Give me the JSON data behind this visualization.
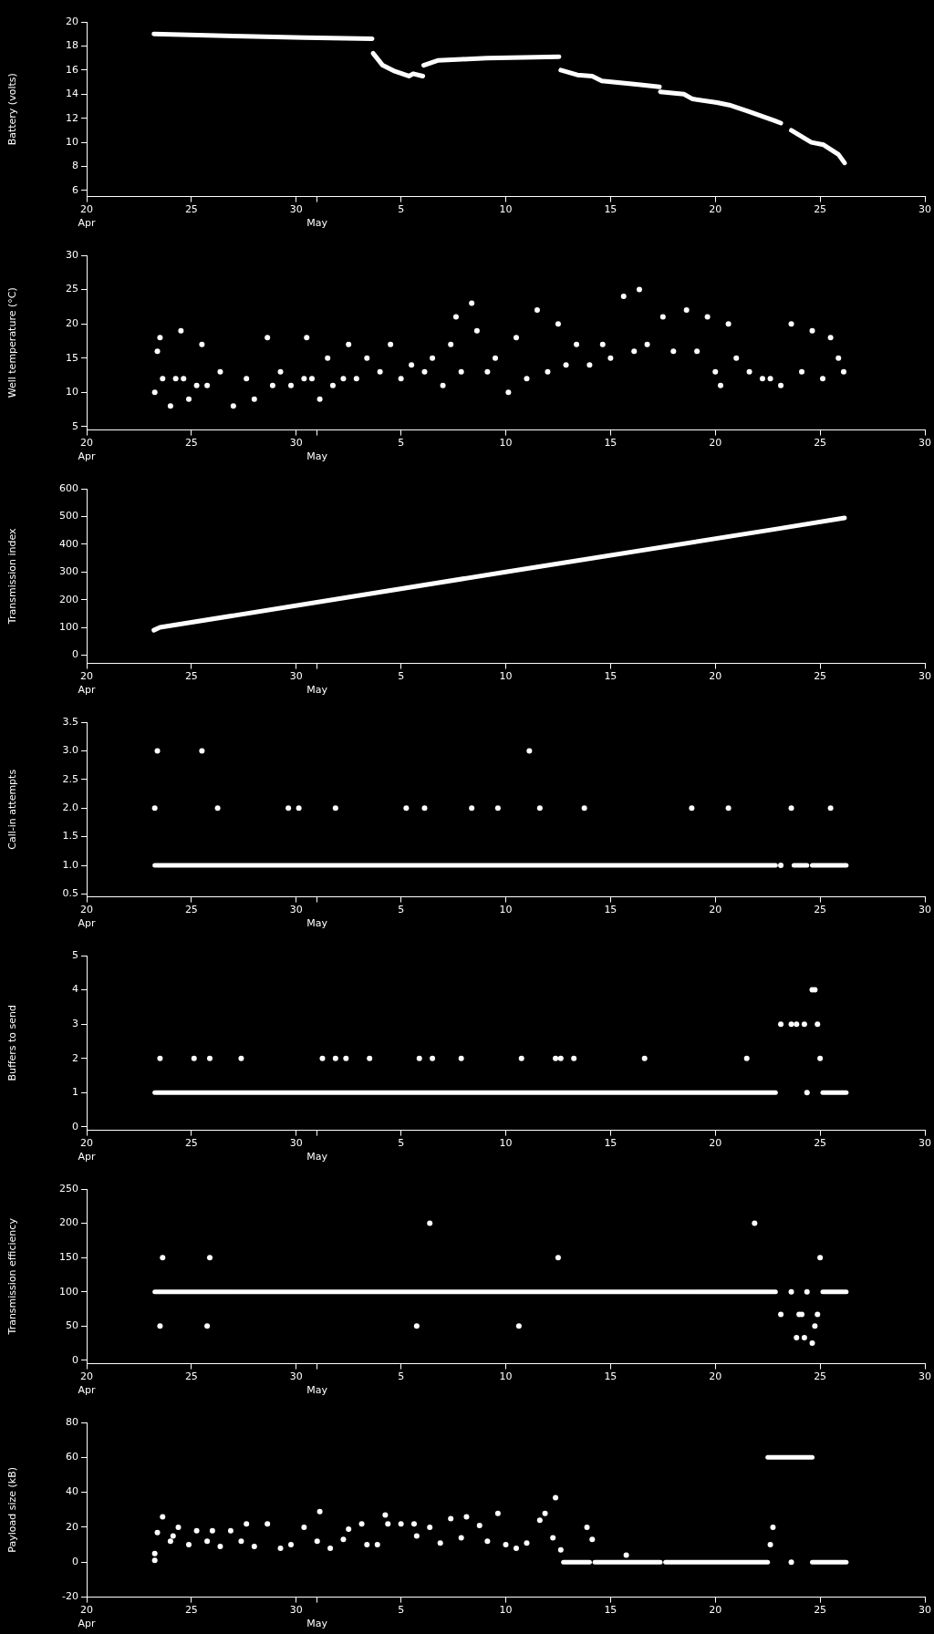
{
  "chart_data": [
    {
      "type": "line",
      "ylabel": "Battery (volts)",
      "xlim": [
        "--04-20",
        "--05-30"
      ],
      "xticks": [
        {
          "value": "--04-20",
          "label": "20"
        },
        {
          "value": "--04-25",
          "label": "25"
        },
        {
          "value": "--04-30",
          "label": "30"
        },
        {
          "value": "--05-01",
          "label": null
        },
        {
          "value": "--05-05",
          "label": "5"
        },
        {
          "value": "--05-10",
          "label": "10"
        },
        {
          "value": "--05-15",
          "label": "15"
        },
        {
          "value": "--05-20",
          "label": "20"
        },
        {
          "value": "--05-25",
          "label": "25"
        },
        {
          "value": "--05-30",
          "label": "30"
        }
      ],
      "x2lim": [
        "--04-20",
        "--05-30"
      ],
      "x2ticks": [
        {
          "value": "--04-20",
          "label": "Apr"
        },
        {
          "value": "--05-01",
          "label": "May"
        }
      ],
      "ylim": [
        5.5,
        20
      ],
      "yticks": [
        6,
        8,
        10,
        12,
        14,
        16,
        18,
        20
      ],
      "grid": false,
      "series": [
        {
          "color": "#ffffff",
          "x": [
            "--04-23T05:00",
            "--04-27T12:00",
            "--04-30T09:00",
            "--05-03T15:00"
          ],
          "values": [
            19.0,
            18.8,
            18.7,
            18.6
          ]
        },
        {
          "color": "#ffffff",
          "x": [
            "--05-03T16:00",
            "--05-04T03:00",
            "--05-04T17:00",
            "--05-05T09:00",
            "--05-05T14:00",
            "--05-06T01:00"
          ],
          "values": [
            17.4,
            16.4,
            15.9,
            15.5,
            15.7,
            15.5
          ]
        },
        {
          "color": "#ffffff",
          "x": [
            "--05-06T02:00",
            "--05-06T18:00",
            "--05-07T22:00",
            "--05-09T02:00",
            "--05-12T13:00"
          ],
          "values": [
            16.4,
            16.8,
            16.9,
            17.0,
            17.1
          ]
        },
        {
          "color": "#ffffff",
          "x": [
            "--05-12T15:00",
            "--05-13T10:00",
            "--05-14T03:00",
            "--05-14T14:00",
            "--05-16T08:00",
            "--05-17T08:00"
          ],
          "values": [
            16.0,
            15.6,
            15.5,
            15.1,
            14.8,
            14.6
          ]
        },
        {
          "color": "#ffffff",
          "x": [
            "--05-17T09:00",
            "--05-18T12:00",
            "--05-18T22:00",
            "--05-20T02:00",
            "--05-20T16:00",
            "--05-21T13:00",
            "--05-22T20:00",
            "--05-23T03:00"
          ],
          "values": [
            14.2,
            14.0,
            13.6,
            13.3,
            13.1,
            12.6,
            11.8,
            11.6
          ]
        },
        {
          "color": "#ffffff",
          "x": [
            "--05-23T15:00",
            "--05-24T07:00",
            "--05-24T14:00",
            "--05-25T04:00",
            "--05-25T21:00",
            "--05-26T04:00"
          ],
          "values": [
            11.0,
            10.3,
            10.0,
            9.8,
            9.0,
            8.3
          ]
        }
      ]
    },
    {
      "type": "scatter",
      "marker": "circle",
      "ylabel": "Well temperature (°C)",
      "xlim": [
        "--04-20",
        "--05-30"
      ],
      "xticks": [
        {
          "value": "--04-20",
          "label": "20"
        },
        {
          "value": "--04-25",
          "label": "25"
        },
        {
          "value": "--04-30",
          "label": "30"
        },
        {
          "value": "--05-01",
          "label": null
        },
        {
          "value": "--05-05",
          "label": "5"
        },
        {
          "value": "--05-10",
          "label": "10"
        },
        {
          "value": "--05-15",
          "label": "15"
        },
        {
          "value": "--05-20",
          "label": "20"
        },
        {
          "value": "--05-25",
          "label": "25"
        },
        {
          "value": "--05-30",
          "label": "30"
        }
      ],
      "x2lim": [
        "--04-20",
        "--05-30"
      ],
      "x2ticks": [
        {
          "value": "--04-20",
          "label": "Apr"
        },
        {
          "value": "--05-01",
          "label": "May"
        }
      ],
      "ylim": [
        4.5,
        30
      ],
      "yticks": [
        5,
        10,
        15,
        20,
        25,
        30
      ],
      "grid": false,
      "series": [
        {
          "color": "#ffffff",
          "x": [
            "--04-23T06:00",
            "--04-23T09:00",
            "--04-23T12:00",
            "--04-23T15:00",
            "--04-24T00:00",
            "--04-24T06:00",
            "--04-24T12:00",
            "--04-24T15:00",
            "--04-24T21:00",
            "--04-25T06:00",
            "--04-25T12:00",
            "--04-25T18:00",
            "--04-26T09:00",
            "--04-27T00:00",
            "--04-27T15:00",
            "--04-28T00:00",
            "--04-28T15:00",
            "--04-28T21:00",
            "--04-29T06:00",
            "--04-29T18:00",
            "--04-30T09:00",
            "--04-30T12:00",
            "--04-30T18:00",
            "--05-01T03:00",
            "--05-01T12:00",
            "--05-01T18:00",
            "--05-02T06:00",
            "--05-02T12:00",
            "--05-02T21:00",
            "--05-03T09:00",
            "--05-04T00:00",
            "--05-04T12:00",
            "--05-05T00:00",
            "--05-05T12:00",
            "--05-06T03:00",
            "--05-06T12:00",
            "--05-07T00:00",
            "--05-07T09:00",
            "--05-07T15:00",
            "--05-07T21:00",
            "--05-08T09:00",
            "--05-08T15:00",
            "--05-09T03:00",
            "--05-09T12:00",
            "--05-10T03:00",
            "--05-10T12:00",
            "--05-11T00:00",
            "--05-11T12:00",
            "--05-12T00:00",
            "--05-12T12:00",
            "--05-12T21:00",
            "--05-13T09:00",
            "--05-14T00:00",
            "--05-14T15:00",
            "--05-15T00:00",
            "--05-15T15:00",
            "--05-16T03:00",
            "--05-16T09:00",
            "--05-16T18:00",
            "--05-17T12:00",
            "--05-18T00:00",
            "--05-18T15:00",
            "--05-19T03:00",
            "--05-19T15:00",
            "--05-20T00:00",
            "--05-20T06:00",
            "--05-20T15:00",
            "--05-21T00:00",
            "--05-21T15:00",
            "--05-22T06:00",
            "--05-22T15:00",
            "--05-23T03:00",
            "--05-23T15:00",
            "--05-24T03:00",
            "--05-24T15:00",
            "--05-25T03:00",
            "--05-25T12:00",
            "--05-25T21:00",
            "--05-26T03:00"
          ],
          "values": [
            10,
            16,
            18,
            12,
            8,
            12,
            19,
            12,
            9,
            11,
            17,
            11,
            13,
            8,
            12,
            9,
            18,
            11,
            13,
            11,
            12,
            18,
            12,
            9,
            15,
            11,
            12,
            17,
            12,
            15,
            13,
            17,
            12,
            14,
            13,
            15,
            11,
            17,
            21,
            13,
            23,
            19,
            13,
            15,
            10,
            18,
            12,
            22,
            13,
            20,
            14,
            17,
            14,
            17,
            15,
            24,
            16,
            25,
            17,
            21,
            16,
            22,
            16,
            21,
            13,
            11,
            20,
            15,
            13,
            12,
            12,
            11,
            20,
            13,
            19,
            12,
            18,
            15,
            13
          ]
        }
      ]
    },
    {
      "type": "line",
      "ylabel": "Transmission index",
      "xlim": [
        "--04-20",
        "--05-30"
      ],
      "xticks": [
        {
          "value": "--04-20",
          "label": "20"
        },
        {
          "value": "--04-25",
          "label": "25"
        },
        {
          "value": "--04-30",
          "label": "30"
        },
        {
          "value": "--05-01",
          "label": null
        },
        {
          "value": "--05-05",
          "label": "5"
        },
        {
          "value": "--05-10",
          "label": "10"
        },
        {
          "value": "--05-15",
          "label": "15"
        },
        {
          "value": "--05-20",
          "label": "20"
        },
        {
          "value": "--05-25",
          "label": "25"
        },
        {
          "value": "--05-30",
          "label": "30"
        }
      ],
      "x2lim": [
        "--04-20",
        "--05-30"
      ],
      "x2ticks": [
        {
          "value": "--04-20",
          "label": "Apr"
        },
        {
          "value": "--05-01",
          "label": "May"
        }
      ],
      "ylim": [
        -30,
        600
      ],
      "yticks": [
        0,
        100,
        200,
        300,
        400,
        500,
        600
      ],
      "grid": false,
      "series": [
        {
          "color": "#ffffff",
          "x": [
            "--04-23T05:00",
            "--04-23T12:00",
            "--05-10T00:00",
            "--05-22T22:00",
            "--05-26T04:00"
          ],
          "values": [
            90,
            100,
            300,
            455,
            495
          ]
        }
      ]
    },
    {
      "type": "scatter",
      "marker": "circle",
      "ylabel": "Call-in attempts",
      "xlim": [
        "--04-20",
        "--05-30"
      ],
      "xticks": [
        {
          "value": "--04-20",
          "label": "20"
        },
        {
          "value": "--04-25",
          "label": "25"
        },
        {
          "value": "--04-30",
          "label": "30"
        },
        {
          "value": "--05-01",
          "label": null
        },
        {
          "value": "--05-05",
          "label": "5"
        },
        {
          "value": "--05-10",
          "label": "10"
        },
        {
          "value": "--05-15",
          "label": "15"
        },
        {
          "value": "--05-20",
          "label": "20"
        },
        {
          "value": "--05-25",
          "label": "25"
        },
        {
          "value": "--05-30",
          "label": "30"
        }
      ],
      "x2lim": [
        "--04-20",
        "--05-30"
      ],
      "x2ticks": [
        {
          "value": "--04-20",
          "label": "Apr"
        },
        {
          "value": "--05-01",
          "label": "May"
        }
      ],
      "ylim": [
        0.45,
        3.5
      ],
      "yticks": [
        0.5,
        {
          "value": 1,
          "label": "1.0"
        },
        1.5,
        {
          "value": 2,
          "label": "2.0"
        },
        2.5,
        {
          "value": 3,
          "label": "3.0"
        },
        3.5
      ],
      "grid": false,
      "series": [
        {
          "color": "#ffffff",
          "x": [
            "--04-23T09:00",
            "--04-25T12:00",
            "--05-11T03:00",
            "--04-23T06:00",
            "--04-26T06:00",
            "--04-29T15:00",
            "--04-30T03:00",
            "--05-01T21:00",
            "--05-05T06:00",
            "--05-06T03:00",
            "--05-08T09:00",
            "--05-09T15:00",
            "--05-11T15:00",
            "--05-13T18:00",
            "--05-18T21:00",
            "--05-20T15:00",
            "--05-23T15:00",
            "--05-25T12:00",
            "--05-23T03:00"
          ],
          "values": [
            3,
            3,
            3,
            2,
            2,
            2,
            2,
            2,
            2,
            2,
            2,
            2,
            2,
            2,
            2,
            2,
            2,
            2,
            1
          ]
        },
        {
          "type": "line",
          "marker": "none",
          "color": "#ffffff",
          "x": [
            "--04-23T06:00",
            "--05-22T21:00"
          ],
          "values": [
            1,
            1
          ]
        },
        {
          "type": "line",
          "marker": "none",
          "color": "#ffffff",
          "x": [
            "--05-23T18:00",
            "--05-24T09:00"
          ],
          "values": [
            1,
            1
          ]
        },
        {
          "type": "line",
          "marker": "none",
          "color": "#ffffff",
          "x": [
            "--05-24T15:00",
            "--05-26T06:00"
          ],
          "values": [
            1,
            1
          ]
        }
      ]
    },
    {
      "type": "scatter",
      "marker": "circle",
      "ylabel": "Buffers to send",
      "xlim": [
        "--04-20",
        "--05-30"
      ],
      "xticks": [
        {
          "value": "--04-20",
          "label": "20"
        },
        {
          "value": "--04-25",
          "label": "25"
        },
        {
          "value": "--04-30",
          "label": "30"
        },
        {
          "value": "--05-01",
          "label": null
        },
        {
          "value": "--05-05",
          "label": "5"
        },
        {
          "value": "--05-10",
          "label": "10"
        },
        {
          "value": "--05-15",
          "label": "15"
        },
        {
          "value": "--05-20",
          "label": "20"
        },
        {
          "value": "--05-25",
          "label": "25"
        },
        {
          "value": "--05-30",
          "label": "30"
        }
      ],
      "x2lim": [
        "--04-20",
        "--05-30"
      ],
      "x2ticks": [
        {
          "value": "--04-20",
          "label": "Apr"
        },
        {
          "value": "--05-01",
          "label": "May"
        }
      ],
      "ylim": [
        -0.1,
        5
      ],
      "yticks": [
        0,
        1,
        2,
        3,
        4,
        5
      ],
      "grid": false,
      "series": [
        {
          "color": "#ffffff",
          "x": [
            "--04-23T12:00",
            "--04-25T03:00",
            "--04-25T21:00",
            "--04-27T09:00",
            "--05-01T06:00",
            "--05-01T21:00",
            "--05-02T09:00",
            "--05-03T12:00",
            "--05-05T21:00",
            "--05-06T12:00",
            "--05-07T21:00",
            "--05-10T18:00",
            "--05-12T09:00",
            "--05-12T15:00",
            "--05-13T06:00",
            "--05-16T15:00",
            "--05-21T12:00",
            "--05-25T00:00",
            "--05-23T03:00",
            "--05-23T15:00",
            "--05-23T21:00",
            "--05-24T06:00",
            "--05-24T21:00",
            "--05-24T15:00",
            "--05-24T18:00",
            "--05-24T09:00"
          ],
          "values": [
            2,
            2,
            2,
            2,
            2,
            2,
            2,
            2,
            2,
            2,
            2,
            2,
            2,
            2,
            2,
            2,
            2,
            2,
            3,
            3,
            3,
            3,
            3,
            4,
            4,
            1
          ]
        },
        {
          "type": "line",
          "marker": "none",
          "color": "#ffffff",
          "x": [
            "--04-23T06:00",
            "--05-22T21:00"
          ],
          "values": [
            1,
            1
          ]
        },
        {
          "type": "line",
          "marker": "none",
          "color": "#ffffff",
          "x": [
            "--05-25T03:00",
            "--05-26T06:00"
          ],
          "values": [
            1,
            1
          ]
        }
      ]
    },
    {
      "type": "scatter",
      "marker": "circle",
      "ylabel": "Transmission efficiency",
      "xlim": [
        "--04-20",
        "--05-30"
      ],
      "xticks": [
        {
          "value": "--04-20",
          "label": "20"
        },
        {
          "value": "--04-25",
          "label": "25"
        },
        {
          "value": "--04-30",
          "label": "30"
        },
        {
          "value": "--05-01",
          "label": null
        },
        {
          "value": "--05-05",
          "label": "5"
        },
        {
          "value": "--05-10",
          "label": "10"
        },
        {
          "value": "--05-15",
          "label": "15"
        },
        {
          "value": "--05-20",
          "label": "20"
        },
        {
          "value": "--05-25",
          "label": "25"
        },
        {
          "value": "--05-30",
          "label": "30"
        }
      ],
      "x2lim": [
        "--04-20",
        "--05-30"
      ],
      "x2ticks": [
        {
          "value": "--04-20",
          "label": "Apr"
        },
        {
          "value": "--05-01",
          "label": "May"
        }
      ],
      "ylim": [
        -5,
        250
      ],
      "yticks": [
        0,
        50,
        100,
        150,
        200,
        250
      ],
      "grid": false,
      "series": [
        {
          "color": "#ffffff",
          "x": [
            "--04-23T15:00",
            "--04-25T21:00",
            "--05-12T12:00",
            "--05-25T00:00",
            "--04-23T12:00",
            "--04-25T18:00",
            "--05-05T18:00",
            "--05-10T15:00",
            "--05-06T09:00",
            "--05-21T21:00",
            "--05-23T03:00",
            "--05-23T15:00",
            "--05-23T21:00",
            "--05-24T00:00",
            "--05-24T03:00",
            "--05-24T06:00",
            "--05-24T09:00",
            "--05-24T15:00",
            "--05-24T18:00",
            "--05-24T21:00"
          ],
          "values": [
            150,
            150,
            150,
            150,
            50,
            50,
            50,
            50,
            200,
            200,
            67,
            100,
            33,
            67,
            67,
            33,
            100,
            25,
            50,
            67
          ]
        },
        {
          "type": "line",
          "marker": "none",
          "color": "#ffffff",
          "x": [
            "--04-23T06:00",
            "--05-22T21:00"
          ],
          "values": [
            100,
            100
          ]
        },
        {
          "type": "line",
          "marker": "none",
          "color": "#ffffff",
          "x": [
            "--05-25T03:00",
            "--05-26T06:00"
          ],
          "values": [
            100,
            100
          ]
        }
      ]
    },
    {
      "type": "scatter",
      "marker": "circle",
      "ylabel": "Payload size (kB)",
      "xlim": [
        "--04-20",
        "--05-30"
      ],
      "xticks": [
        {
          "value": "--04-20",
          "label": "20"
        },
        {
          "value": "--04-25",
          "label": "25"
        },
        {
          "value": "--04-30",
          "label": "30"
        },
        {
          "value": "--05-01",
          "label": null
        },
        {
          "value": "--05-05",
          "label": "5"
        },
        {
          "value": "--05-10",
          "label": "10"
        },
        {
          "value": "--05-15",
          "label": "15"
        },
        {
          "value": "--05-20",
          "label": "20"
        },
        {
          "value": "--05-25",
          "label": "25"
        },
        {
          "value": "--05-30",
          "label": "30"
        }
      ],
      "x2lim": [
        "--04-20",
        "--05-30"
      ],
      "x2ticks": [
        {
          "value": "--04-20",
          "label": "Apr"
        },
        {
          "value": "--05-01",
          "label": "May"
        }
      ],
      "ylim": [
        -20,
        80
      ],
      "yticks": [
        -20,
        0,
        20,
        40,
        60,
        80
      ],
      "grid": false,
      "series": [
        {
          "color": "#ffffff",
          "x": [
            "--04-23T06:00",
            "--04-23T06:00",
            "--04-23T09:00",
            "--04-23T15:00",
            "--04-24T00:00",
            "--04-24T03:00",
            "--04-24T09:00",
            "--04-24T21:00",
            "--04-25T06:00",
            "--04-25T18:00",
            "--04-26T00:00",
            "--04-26T09:00",
            "--04-26T21:00",
            "--04-27T09:00",
            "--04-27T15:00",
            "--04-28T00:00",
            "--04-28T15:00",
            "--04-29T06:00",
            "--04-29T18:00",
            "--04-30T09:00",
            "--05-01T00:00",
            "--05-01T03:00",
            "--05-01T15:00",
            "--05-02T06:00",
            "--05-02T12:00",
            "--05-03T03:00",
            "--05-03T09:00",
            "--05-03T21:00",
            "--05-04T06:00",
            "--05-04T09:00",
            "--05-05T00:00",
            "--05-05T15:00",
            "--05-05T18:00",
            "--05-06T09:00",
            "--05-06T21:00",
            "--05-07T09:00",
            "--05-07T21:00",
            "--05-08T03:00",
            "--05-08T18:00",
            "--05-09T03:00",
            "--05-09T15:00",
            "--05-10T00:00",
            "--05-10T12:00",
            "--05-11T00:00",
            "--05-11T15:00",
            "--05-11T21:00",
            "--05-12T06:00",
            "--05-12T09:00",
            "--05-12T15:00",
            "--05-13T21:00",
            "--05-14T03:00",
            "--05-15T18:00",
            "--05-22T15:00",
            "--05-22T18:00",
            "--05-23T15:00"
          ],
          "values": [
            5,
            1,
            17,
            26,
            12,
            15,
            20,
            10,
            18,
            12,
            18,
            9,
            18,
            12,
            22,
            9,
            22,
            8,
            10,
            20,
            12,
            29,
            8,
            13,
            19,
            22,
            10,
            10,
            27,
            22,
            22,
            22,
            15,
            20,
            11,
            25,
            14,
            26,
            21,
            12,
            28,
            10,
            8,
            11,
            24,
            28,
            14,
            37,
            7,
            20,
            13,
            4,
            10,
            20,
            0
          ]
        },
        {
          "type": "line",
          "marker": "none",
          "color": "#ffffff",
          "x": [
            "--05-12T18:00",
            "--05-14T00:00"
          ],
          "values": [
            0,
            0
          ]
        },
        {
          "type": "line",
          "marker": "none",
          "color": "#ffffff",
          "x": [
            "--05-14T06:00",
            "--05-17T09:00"
          ],
          "values": [
            0,
            0
          ]
        },
        {
          "type": "line",
          "marker": "none",
          "color": "#ffffff",
          "x": [
            "--05-17T15:00",
            "--05-22T12:00"
          ],
          "values": [
            0,
            0
          ]
        },
        {
          "type": "line",
          "marker": "none",
          "color": "#ffffff",
          "x": [
            "--05-24T15:00",
            "--05-26T06:00"
          ],
          "values": [
            0,
            0
          ]
        },
        {
          "type": "line",
          "marker": "none",
          "color": "#ffffff",
          "x": [
            "--05-22T12:00",
            "--05-24T15:00"
          ],
          "values": [
            60,
            60
          ]
        }
      ]
    }
  ]
}
